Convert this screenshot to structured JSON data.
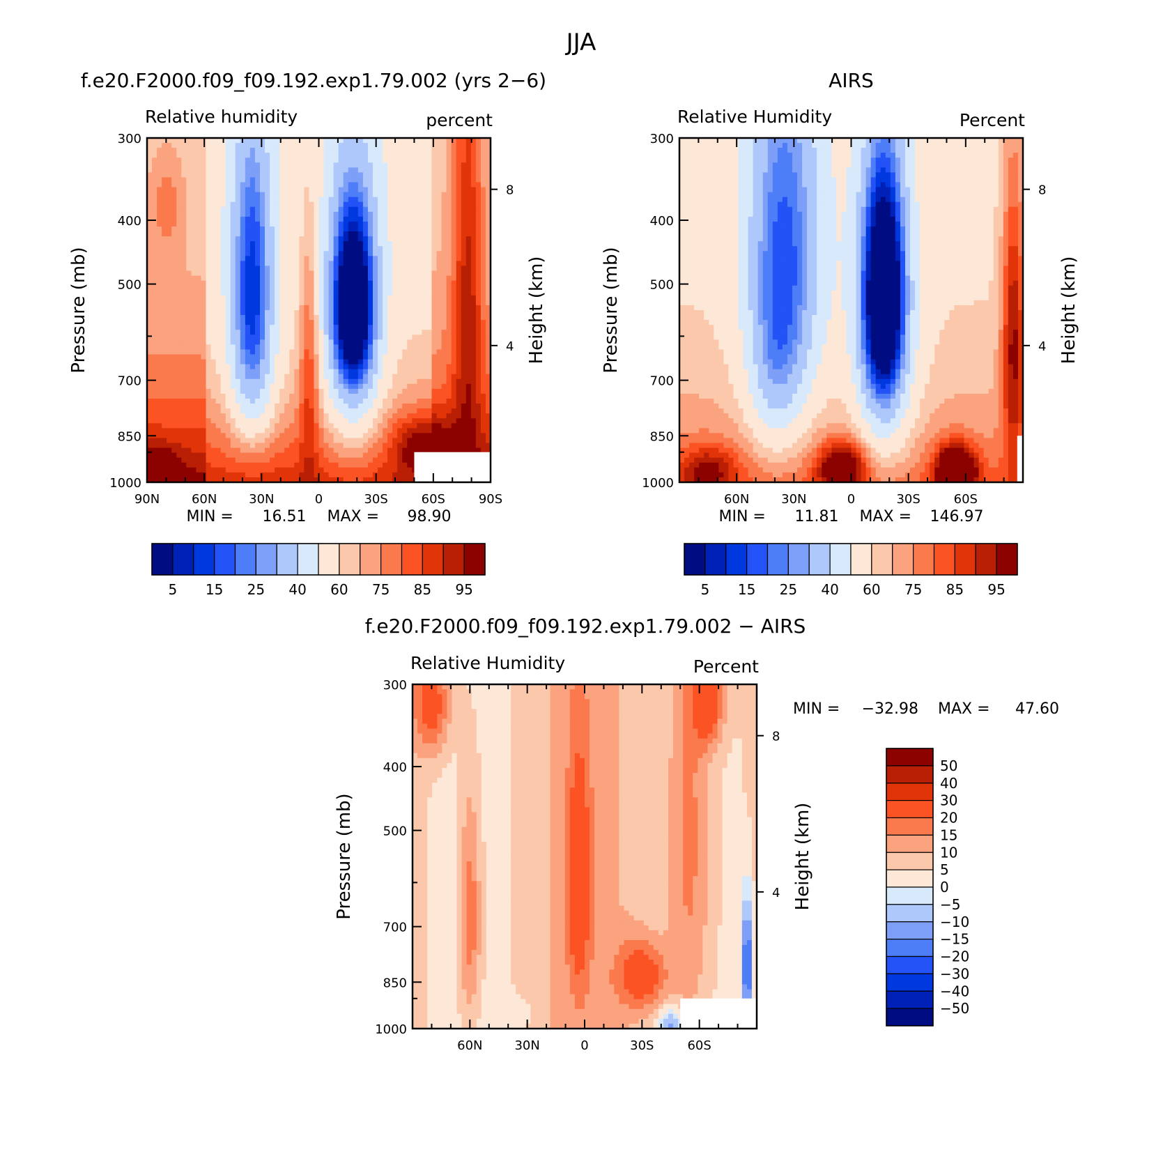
{
  "figure_title": "JJA",
  "chart_data": [
    {
      "type": "heatmap",
      "title": "f.e20.F2000.f09_f09.192.exp1.79.002 (yrs 2−6)",
      "subtitle_left": "Relative humidity",
      "subtitle_right": "percent",
      "ylabel": "Pressure (mb)",
      "ylabel_right": "Height (km)",
      "xticks": [
        "90N",
        "60N",
        "30N",
        "0",
        "30S",
        "60S",
        "90S"
      ],
      "yticks": [
        "300",
        "400",
        "500",
        "700",
        "850",
        "1000"
      ],
      "height_ticks": [
        "8",
        "4"
      ],
      "stats": {
        "min_label": "MIN =",
        "min": "16.51",
        "max_label": "MAX =",
        "max": "98.90"
      },
      "colorbar_labels": [
        "5",
        "15",
        "25",
        "40",
        "60",
        "75",
        "85",
        "95"
      ],
      "levels": [
        5,
        10,
        15,
        20,
        25,
        30,
        40,
        50,
        60,
        65,
        70,
        75,
        80,
        85,
        90,
        95
      ],
      "lat_range": [
        90,
        -90
      ],
      "pressure_range": [
        300,
        1000
      ],
      "y_scale": "log",
      "missing_region": {
        "lat": [
          -50,
          -90
        ],
        "pressure": [
          900,
          1000
        ]
      },
      "features": [
        {
          "lat": -18,
          "p": 540,
          "value": -55,
          "slat": 11,
          "sp": 180
        },
        {
          "lat": -18,
          "p": 600,
          "value": -25,
          "slat": 16,
          "sp": 300
        },
        {
          "lat": 35,
          "p": 480,
          "value": -40,
          "slat": 11,
          "sp": 240
        },
        {
          "lat": 35,
          "p": 700,
          "value": -18,
          "slat": 13,
          "sp": 200
        },
        {
          "lat": 5,
          "p": 650,
          "value": 18,
          "slat": 5,
          "sp": 300
        },
        {
          "lat": -55,
          "p": 880,
          "value": 22,
          "slat": 16,
          "sp": 90
        },
        {
          "lat": -78,
          "p": 500,
          "value": 22,
          "slat": 8,
          "sp": 400
        },
        {
          "lat": 85,
          "p": 960,
          "value": 25,
          "slat": 10,
          "sp": 70
        },
        {
          "lat": 80,
          "p": 380,
          "value": 10,
          "slat": 8,
          "sp": 60
        }
      ]
    },
    {
      "type": "heatmap",
      "title": "AIRS",
      "subtitle_left": "Relative Humidity",
      "subtitle_right": "Percent",
      "ylabel": "Pressure (mb)",
      "ylabel_right": "Height (km)",
      "xticks": [
        "60N",
        "30N",
        "0",
        "30S",
        "60S"
      ],
      "yticks": [
        "300",
        "400",
        "500",
        "700",
        "850",
        "1000"
      ],
      "height_ticks": [
        "8",
        "4"
      ],
      "stats": {
        "min_label": "MIN =",
        "min": "11.81",
        "max_label": "MAX =",
        "max": "146.97"
      },
      "colorbar_labels": [
        "5",
        "15",
        "25",
        "40",
        "60",
        "75",
        "85",
        "95"
      ],
      "levels": [
        5,
        10,
        15,
        20,
        25,
        30,
        40,
        50,
        60,
        65,
        70,
        75,
        80,
        85,
        90,
        95
      ],
      "lat_range": [
        90,
        -90
      ],
      "pressure_range": [
        300,
        1000
      ],
      "y_scale": "log",
      "missing_region": {
        "lat": [
          -87,
          -90
        ],
        "pressure": [
          850,
          1000
        ]
      },
      "features": [
        {
          "lat": -17,
          "p": 520,
          "value": -62,
          "slat": 11,
          "sp": 220
        },
        {
          "lat": -17,
          "p": 600,
          "value": -25,
          "slat": 17,
          "sp": 330
        },
        {
          "lat": 35,
          "p": 450,
          "value": -40,
          "slat": 20,
          "sp": 320
        },
        {
          "lat": 40,
          "p": 700,
          "value": -15,
          "slat": 14,
          "sp": 200
        },
        {
          "lat": -55,
          "p": 960,
          "value": 50,
          "slat": 10,
          "sp": 80
        },
        {
          "lat": 5,
          "p": 950,
          "value": 35,
          "slat": 12,
          "sp": 80
        },
        {
          "lat": -85,
          "p": 600,
          "value": 30,
          "slat": 6,
          "sp": 300
        },
        {
          "lat": 75,
          "p": 960,
          "value": 20,
          "slat": 15,
          "sp": 80
        }
      ]
    },
    {
      "type": "heatmap",
      "title": "f.e20.F2000.f09_f09.192.exp1.79.002 − AIRS",
      "subtitle_left": "Relative Humidity",
      "subtitle_right": "Percent",
      "ylabel": "Pressure (mb)",
      "ylabel_right": "Height (km)",
      "xticks": [
        "60N",
        "30N",
        "0",
        "30S",
        "60S"
      ],
      "yticks": [
        "300",
        "400",
        "500",
        "700",
        "850",
        "1000"
      ],
      "height_ticks": [
        "8",
        "4"
      ],
      "stats": {
        "min_label": "MIN =",
        "min": "−32.98",
        "max_label": "MAX =",
        "max": "47.60"
      },
      "colorbar_labels": [
        "50",
        "40",
        "30",
        "20",
        "15",
        "10",
        "5",
        "0",
        "−5",
        "−10",
        "−15",
        "−20",
        "−30",
        "−40",
        "−50"
      ],
      "levels": [
        -50,
        -40,
        -30,
        -20,
        -15,
        -10,
        -5,
        0,
        5,
        10,
        15,
        20,
        30,
        40,
        50
      ],
      "lat_range": [
        90,
        -90
      ],
      "pressure_range": [
        300,
        1000
      ],
      "y_scale": "log",
      "missing_region": {
        "lat": [
          -50,
          -90
        ],
        "pressure": [
          900,
          1000
        ]
      },
      "features": [
        {
          "lat": -30,
          "p": 830,
          "value": 20,
          "slat": 13,
          "sp": 100
        },
        {
          "lat": 3,
          "p": 600,
          "value": 18,
          "slat": 6,
          "sp": 250
        },
        {
          "lat": 60,
          "p": 680,
          "value": 16,
          "slat": 6,
          "sp": 280
        },
        {
          "lat": -55,
          "p": 520,
          "value": 14,
          "slat": 12,
          "sp": 500
        },
        {
          "lat": -85,
          "p": 800,
          "value": -28,
          "slat": 3,
          "sp": 180
        },
        {
          "lat": -45,
          "p": 990,
          "value": -18,
          "slat": 6,
          "sp": 60
        },
        {
          "lat": 80,
          "p": 320,
          "value": 20,
          "slat": 10,
          "sp": 60
        },
        {
          "lat": -65,
          "p": 320,
          "value": 20,
          "slat": 8,
          "sp": 50
        },
        {
          "lat": 35,
          "p": 950,
          "value": -5,
          "slat": 8,
          "sp": 50
        }
      ]
    }
  ]
}
